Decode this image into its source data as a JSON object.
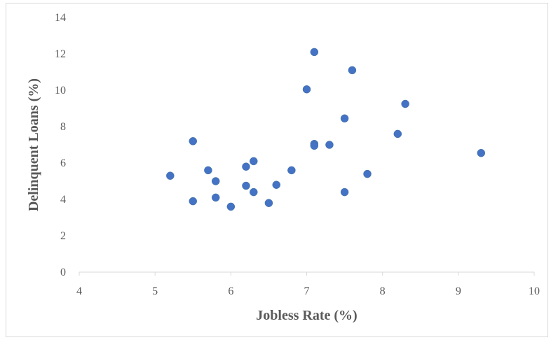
{
  "chart_data": {
    "type": "scatter",
    "title": "",
    "xlabel": "Jobless Rate (%)",
    "ylabel": "Delinquent Loans (%)",
    "xlim": [
      4,
      10
    ],
    "ylim": [
      0,
      14
    ],
    "x_ticks": [
      4,
      5,
      6,
      7,
      8,
      9,
      10
    ],
    "y_ticks": [
      0,
      2,
      4,
      6,
      8,
      10,
      12,
      14
    ],
    "grid": false,
    "legend": "none",
    "marker_color": "#4472C4",
    "series": [
      {
        "points": [
          [
            5.2,
            5.3
          ],
          [
            5.5,
            7.2
          ],
          [
            5.5,
            3.9
          ],
          [
            5.7,
            5.6
          ],
          [
            5.8,
            5.0
          ],
          [
            5.8,
            4.1
          ],
          [
            6.0,
            3.6
          ],
          [
            6.2,
            5.8
          ],
          [
            6.2,
            4.75
          ],
          [
            6.3,
            6.1
          ],
          [
            6.3,
            4.4
          ],
          [
            6.5,
            3.8
          ],
          [
            6.6,
            4.8
          ],
          [
            6.8,
            5.6
          ],
          [
            7.0,
            10.05
          ],
          [
            7.1,
            12.1
          ],
          [
            7.1,
            7.05
          ],
          [
            7.1,
            6.95
          ],
          [
            7.3,
            7.0
          ],
          [
            7.5,
            8.45
          ],
          [
            7.5,
            4.4
          ],
          [
            7.6,
            11.1
          ],
          [
            7.8,
            5.4
          ],
          [
            8.2,
            7.6
          ],
          [
            8.3,
            9.25
          ],
          [
            9.3,
            6.55
          ]
        ]
      }
    ]
  }
}
